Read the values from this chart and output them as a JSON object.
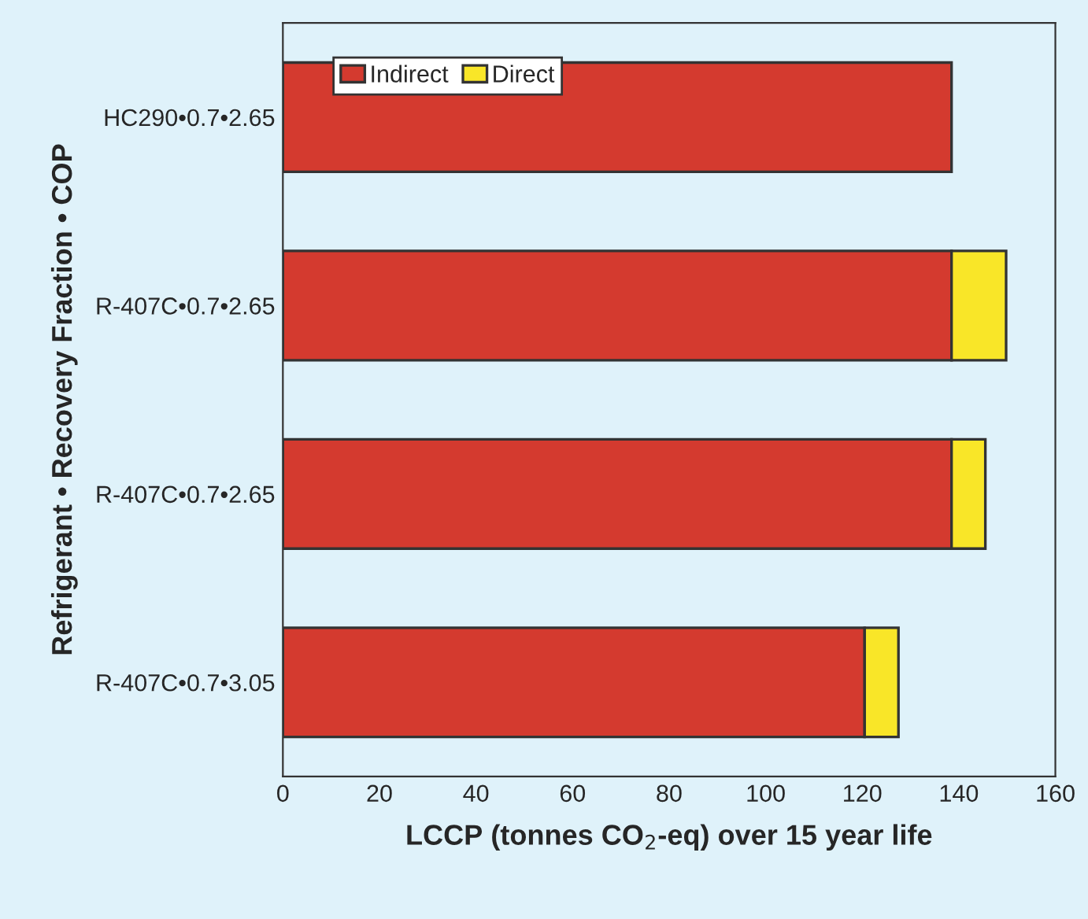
{
  "chart_data": {
    "type": "bar",
    "orientation": "horizontal",
    "stacked": true,
    "xlabel": "LCCP (tonnes CO$_{2}$-eq) over 15 year life",
    "ylabel": "Refrigerant • Recovery Fraction • COP",
    "categories": [
      "HC290•0.7•2.65",
      "R-407C•0.7•2.65",
      "R-407C•0.7•2.65",
      "R-407C•0.7•3.05"
    ],
    "series": [
      {
        "name": "Indirect",
        "color": "#d43a2f",
        "values": [
          138.5,
          138.5,
          138.5,
          120.5
        ]
      },
      {
        "name": "Direct",
        "color": "#f9e628",
        "values": [
          null,
          11.3,
          7,
          7
        ]
      }
    ],
    "xlim": [
      0,
      160
    ],
    "xticks": [
      0,
      20,
      40,
      60,
      80,
      100,
      120,
      140,
      160
    ],
    "grid": false,
    "legend": "top left"
  }
}
